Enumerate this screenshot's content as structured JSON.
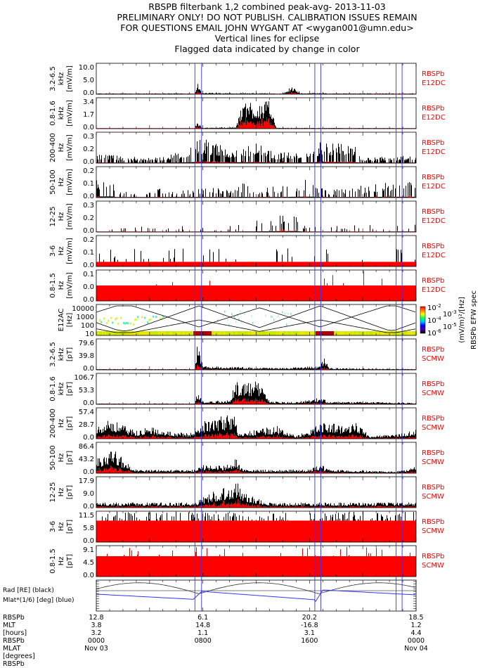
{
  "title_lines": [
    "RBSPB filterbank 1,2 combined peak-avg- 2013-11-03",
    "PRELIMINARY ONLY! DO NOT PUBLISH. CALIBRATION ISSUES REMAIN",
    "FOR QUESTIONS EMAIL JOHN WYGANT AT <wygan001@umn.edu>",
    "Vertical lines for eclipse",
    "Flagged data indicated by change in color"
  ],
  "colors": {
    "peak": "#000000",
    "avg": "#ff0000",
    "eclipse": "#3333ff",
    "mlat": "#3333ff",
    "label": "#ff0000"
  },
  "chart_data": {
    "type": "line",
    "x_unit": "hours UT",
    "xlim": [
      0,
      24
    ],
    "eclipse_hours": [
      7.4,
      7.9,
      16.4,
      16.85,
      22.5,
      22.95
    ],
    "panels": [
      {
        "label": [
          "3.2-6.5",
          "kHz",
          "[mV/m]"
        ],
        "ticks": [
          "10.0",
          "5.0",
          "0.0"
        ],
        "ylim": [
          0,
          10
        ],
        "source": [
          "RBSPb",
          "E12DC"
        ],
        "avg_ratio": 0.3,
        "sparse": 0.9,
        "envelope": [
          [
            0,
            0.3
          ],
          [
            7.4,
            0.3
          ],
          [
            7.6,
            4
          ],
          [
            7.9,
            0.5
          ],
          [
            14,
            0.3
          ],
          [
            14.6,
            2.5
          ],
          [
            15.5,
            0.3
          ],
          [
            17,
            0.6
          ],
          [
            17.3,
            0.3
          ],
          [
            24,
            0.3
          ]
        ]
      },
      {
        "label": [
          "0.8-1.6",
          "kHz",
          "[mV/m]"
        ],
        "ticks": [
          "3.4",
          "1.7",
          "0.0"
        ],
        "ylim": [
          0,
          3.4
        ],
        "source": [
          "RBSPb",
          "E12DC"
        ],
        "avg_ratio": 0.35,
        "sparse": 1,
        "envelope": [
          [
            0,
            0.05
          ],
          [
            7.4,
            0.05
          ],
          [
            7.6,
            0.9
          ],
          [
            8,
            0.1
          ],
          [
            10.5,
            0.2
          ],
          [
            11,
            3.3
          ],
          [
            13.2,
            3.0
          ],
          [
            13.5,
            0.1
          ],
          [
            24,
            0.05
          ]
        ]
      },
      {
        "label": [
          "200-400",
          "Hz",
          "[mV/m]"
        ],
        "ticks": [
          "0.3",
          "0.2",
          "0.0"
        ],
        "ylim": [
          0,
          0.3
        ],
        "source": [
          "RBSPb",
          "E12DC"
        ],
        "avg_ratio": 0.1,
        "sparse": 0.6,
        "envelope": [
          [
            0,
            0.09
          ],
          [
            4,
            0.05
          ],
          [
            6,
            0.1
          ],
          [
            7.8,
            0.25
          ],
          [
            10,
            0.15
          ],
          [
            12,
            0.2
          ],
          [
            13.5,
            0.1
          ],
          [
            15.5,
            0.12
          ],
          [
            17,
            0.22
          ],
          [
            19.5,
            0.18
          ],
          [
            20,
            0.05
          ],
          [
            24,
            0.08
          ]
        ]
      },
      {
        "label": [
          "50-100",
          "Hz",
          "[mV/m]"
        ],
        "ticks": [
          "0.2",
          "0.1",
          "0.0"
        ],
        "ylim": [
          0,
          0.2
        ],
        "source": [
          "RBSPb",
          "E12DC"
        ],
        "avg_ratio": 0.1,
        "sparse": 0.3,
        "envelope": [
          [
            0,
            0.15
          ],
          [
            1.3,
            0.15
          ],
          [
            1.5,
            0.05
          ],
          [
            10,
            0.07
          ],
          [
            11,
            0.1
          ],
          [
            12,
            0.05
          ],
          [
            16,
            0.12
          ],
          [
            17.5,
            0.05
          ],
          [
            22,
            0.1
          ],
          [
            24,
            0.1
          ]
        ]
      },
      {
        "label": [
          "12-25",
          "Hz",
          "[mV/m]"
        ],
        "ticks": [
          "0.3",
          "0.2",
          "0.0"
        ],
        "ylim": [
          0,
          0.3
        ],
        "source": [
          "RBSPb",
          "E12DC"
        ],
        "avg_ratio": 0.2,
        "sparse": 0.15,
        "envelope": [
          [
            0,
            0.06
          ],
          [
            8,
            0.06
          ],
          [
            9,
            0.02
          ],
          [
            10,
            0.06
          ],
          [
            15,
            0.2
          ],
          [
            15.5,
            0.06
          ],
          [
            24,
            0.08
          ]
        ]
      },
      {
        "label": [
          "3-6",
          "Hz",
          "[mV/m]"
        ],
        "ticks": [
          "0.2",
          "0.1",
          "0.0"
        ],
        "ylim": [
          0,
          0.2
        ],
        "source": [
          "RBSPb",
          "E12DC"
        ],
        "avg_level": 0.03,
        "sparse": 0.06,
        "envelope": [
          [
            0,
            0.12
          ],
          [
            24,
            0.12
          ]
        ]
      },
      {
        "label": [
          "0.8-1.5",
          "Hz",
          "[mV/m]"
        ],
        "ticks": [
          "0.1",
          "0.0",
          "0.0"
        ],
        "ylim": [
          0,
          0.1
        ],
        "source": [
          "RBSPb",
          "E12DC"
        ],
        "avg_level": 0.05,
        "peak_red": true,
        "sparse": 0.05,
        "envelope": [
          [
            0,
            0.1
          ],
          [
            24,
            0.1
          ]
        ]
      },
      {
        "type": "spectrogram",
        "label": [
          "E12AC",
          "[Hz]"
        ],
        "ticks": [
          "10000",
          "1000",
          "100",
          "10"
        ],
        "source": [
          "RBSPb EFW spec"
        ],
        "colorbar_ticks": [
          "10",
          "10",
          "10",
          "10",
          "10"
        ],
        "colorbar_exps": [
          "-2",
          "-3",
          "-4",
          "-5",
          "-6"
        ],
        "colorbar_unit": "(mV/m)²/[Hz]"
      },
      {
        "label": [
          "3.2-6.5",
          "kHz",
          "[pT]"
        ],
        "ticks": [
          "79.6",
          "39.8",
          "0.0"
        ],
        "ylim": [
          0,
          79.6
        ],
        "source": [
          "RBSPb",
          "SCMW"
        ],
        "avg_ratio": 0.2,
        "sparse": 1,
        "envelope": [
          [
            0,
            2
          ],
          [
            7.4,
            2
          ],
          [
            7.6,
            70
          ],
          [
            8,
            10
          ],
          [
            10,
            8
          ],
          [
            14,
            5
          ],
          [
            16.8,
            10
          ],
          [
            17.1,
            30
          ],
          [
            17.5,
            5
          ],
          [
            24,
            2
          ]
        ]
      },
      {
        "label": [
          "0.8-1.6",
          "kHz",
          "[pT]"
        ],
        "ticks": [
          "106.7",
          "53.3",
          "0.0"
        ],
        "ylim": [
          0,
          106.7
        ],
        "source": [
          "RBSPb",
          "SCMW"
        ],
        "avg_ratio": 0.25,
        "sparse": 1,
        "envelope": [
          [
            0,
            3
          ],
          [
            7.4,
            3
          ],
          [
            7.6,
            50
          ],
          [
            8,
            10
          ],
          [
            10,
            15
          ],
          [
            10.5,
            80
          ],
          [
            12.5,
            80
          ],
          [
            13,
            10
          ],
          [
            15,
            8
          ],
          [
            17,
            25
          ],
          [
            17.3,
            10
          ],
          [
            21,
            8
          ],
          [
            24,
            5
          ]
        ]
      },
      {
        "label": [
          "200-400",
          "Hz",
          "[pT]"
        ],
        "ticks": [
          "57.4",
          "28.7",
          "0.0"
        ],
        "ylim": [
          0,
          57.4
        ],
        "source": [
          "RBSPb",
          "SCMW"
        ],
        "avg_ratio": 0.25,
        "sparse": 1,
        "envelope": [
          [
            0,
            25
          ],
          [
            1,
            40
          ],
          [
            2,
            25
          ],
          [
            3,
            15
          ],
          [
            4,
            25
          ],
          [
            5,
            15
          ],
          [
            7,
            10
          ],
          [
            7.8,
            30
          ],
          [
            9,
            40
          ],
          [
            10.3,
            50
          ],
          [
            10.7,
            10
          ],
          [
            13.5,
            25
          ],
          [
            15,
            5
          ],
          [
            16.3,
            20
          ],
          [
            17,
            35
          ],
          [
            18.5,
            25
          ],
          [
            19.5,
            35
          ],
          [
            20.5,
            5
          ],
          [
            23,
            10
          ],
          [
            24,
            18
          ]
        ]
      },
      {
        "label": [
          "50-100",
          "Hz",
          "[pT]"
        ],
        "ticks": [
          "86.4",
          "43.2",
          "0.0"
        ],
        "ylim": [
          0,
          86.4
        ],
        "source": [
          "RBSPb",
          "SCMW"
        ],
        "avg_ratio": 0.3,
        "sparse": 1,
        "envelope": [
          [
            0,
            40
          ],
          [
            1.3,
            80
          ],
          [
            2,
            40
          ],
          [
            3,
            10
          ],
          [
            7.5,
            10
          ],
          [
            8,
            25
          ],
          [
            9.5,
            20
          ],
          [
            10.5,
            40
          ],
          [
            11,
            10
          ],
          [
            16,
            10
          ],
          [
            16.8,
            25
          ],
          [
            17.5,
            10
          ],
          [
            22.5,
            5
          ],
          [
            24,
            20
          ]
        ]
      },
      {
        "label": [
          "12-25",
          "Hz",
          "[pT]"
        ],
        "ticks": [
          "17.9",
          "9.0",
          "0.0"
        ],
        "ylim": [
          0,
          17.9
        ],
        "source": [
          "RBSPb",
          "SCMW"
        ],
        "avg_ratio": 0.3,
        "sparse": 1,
        "envelope": [
          [
            0,
            3
          ],
          [
            7.5,
            3
          ],
          [
            8.5,
            9
          ],
          [
            10.5,
            15
          ],
          [
            11.5,
            8
          ],
          [
            13,
            3
          ],
          [
            24,
            3
          ]
        ]
      },
      {
        "label": [
          "3-6",
          "Hz",
          "[pT]"
        ],
        "ticks": [
          "11.5",
          "5.8",
          "0.0"
        ],
        "ylim": [
          0,
          11.5
        ],
        "source": [
          "RBSPb",
          "SCMW"
        ],
        "avg_level": 8,
        "sparse": 1,
        "envelope": [
          [
            0,
            11.3
          ],
          [
            24,
            11.3
          ]
        ]
      },
      {
        "label": [
          "0.8-1.5",
          "Hz",
          "[pT]"
        ],
        "ticks": [
          "9.1",
          "4.5",
          "0.0"
        ],
        "ylim": [
          0,
          9.1
        ],
        "source": [
          "RBSPb",
          "SCMW"
        ],
        "avg_level": 6,
        "peak_red": true,
        "sparse": 0.15,
        "envelope": [
          [
            0,
            9
          ],
          [
            24,
            9
          ]
        ]
      },
      {
        "type": "ephemeris",
        "label": [
          "Rad [RE] (black)",
          "Mlat*(1/6) [deg] (blue)"
        ]
      }
    ],
    "x_labels": {
      "row_titles": [
        "RBSPb",
        "MLT",
        "[hours]",
        "RBSPb",
        "MLAT",
        "[degrees]",
        "RBSPb"
      ],
      "columns": [
        {
          "hour": 0,
          "values": [
            "12.8",
            "3.8",
            "3.2",
            "0000",
            "Nov 03"
          ]
        },
        {
          "hour": 8,
          "values": [
            "6.1",
            "14.8",
            "1.1",
            "0800",
            ""
          ]
        },
        {
          "hour": 16,
          "values": [
            "20.2",
            "-16.8",
            "3.1",
            "1600",
            ""
          ]
        },
        {
          "hour": 24,
          "values": [
            "18.5",
            "1.2",
            "4.4",
            "0000",
            "Nov 04"
          ]
        }
      ]
    }
  }
}
